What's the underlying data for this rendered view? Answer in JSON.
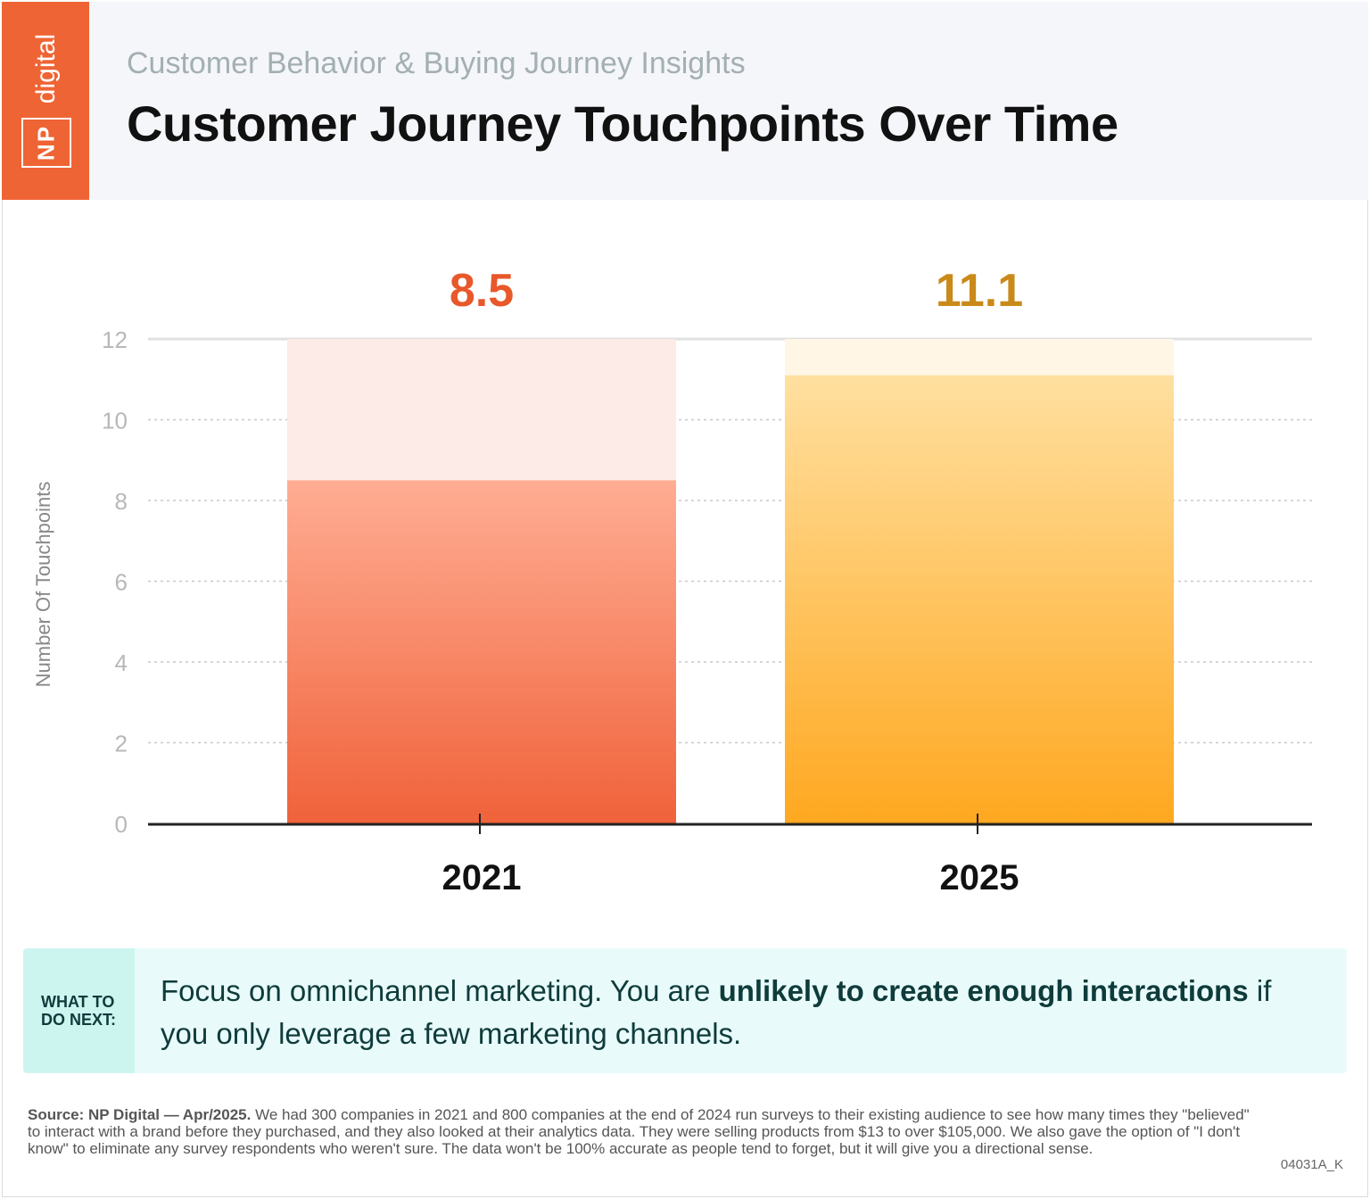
{
  "logo": {
    "top": "digital",
    "box": "NP"
  },
  "header": {
    "subtitle": "Customer Behavior & Buying Journey Insights",
    "title": "Customer Journey Touchpoints Over Time"
  },
  "chart_data": {
    "type": "bar",
    "categories": [
      "2021",
      "2025"
    ],
    "values": [
      8.5,
      11.1
    ],
    "data_labels": [
      "8.5",
      "11.1"
    ],
    "colors": [
      "#f0623a",
      "#ffa820"
    ],
    "label_colors": [
      "#e8582a",
      "#c98a1a"
    ],
    "background_colors": [
      "#fcebe6",
      "#fff6e6"
    ],
    "ylabel": "Number Of Touchpoints",
    "ylim": [
      0,
      12
    ],
    "yticks": [
      "0",
      "2",
      "4",
      "6",
      "8",
      "10",
      "12"
    ],
    "grid": true
  },
  "tip": {
    "label_line1": "WHAT TO",
    "label_line2": "DO NEXT:",
    "text_pre": "Focus on omnichannel marketing. You are ",
    "text_bold": "unlikely to create enough interactions",
    "text_post": " if you only leverage a few marketing channels."
  },
  "source": {
    "bold": "Source: NP Digital — Apr/2025.",
    "text": " We had 300 companies in 2021 and 800 companies at the end of 2024 run surveys to their existing audience to see how many times they \"believed\" to interact with a brand before they purchased, and they also looked at their analytics data. They were selling products from $13 to over $105,000. We also gave the option of \"I don't know\" to eliminate any survey respondents who weren't sure. The data won't be 100% accurate as people tend to forget, but it will give you a directional sense.",
    "code": "04031A_K"
  }
}
